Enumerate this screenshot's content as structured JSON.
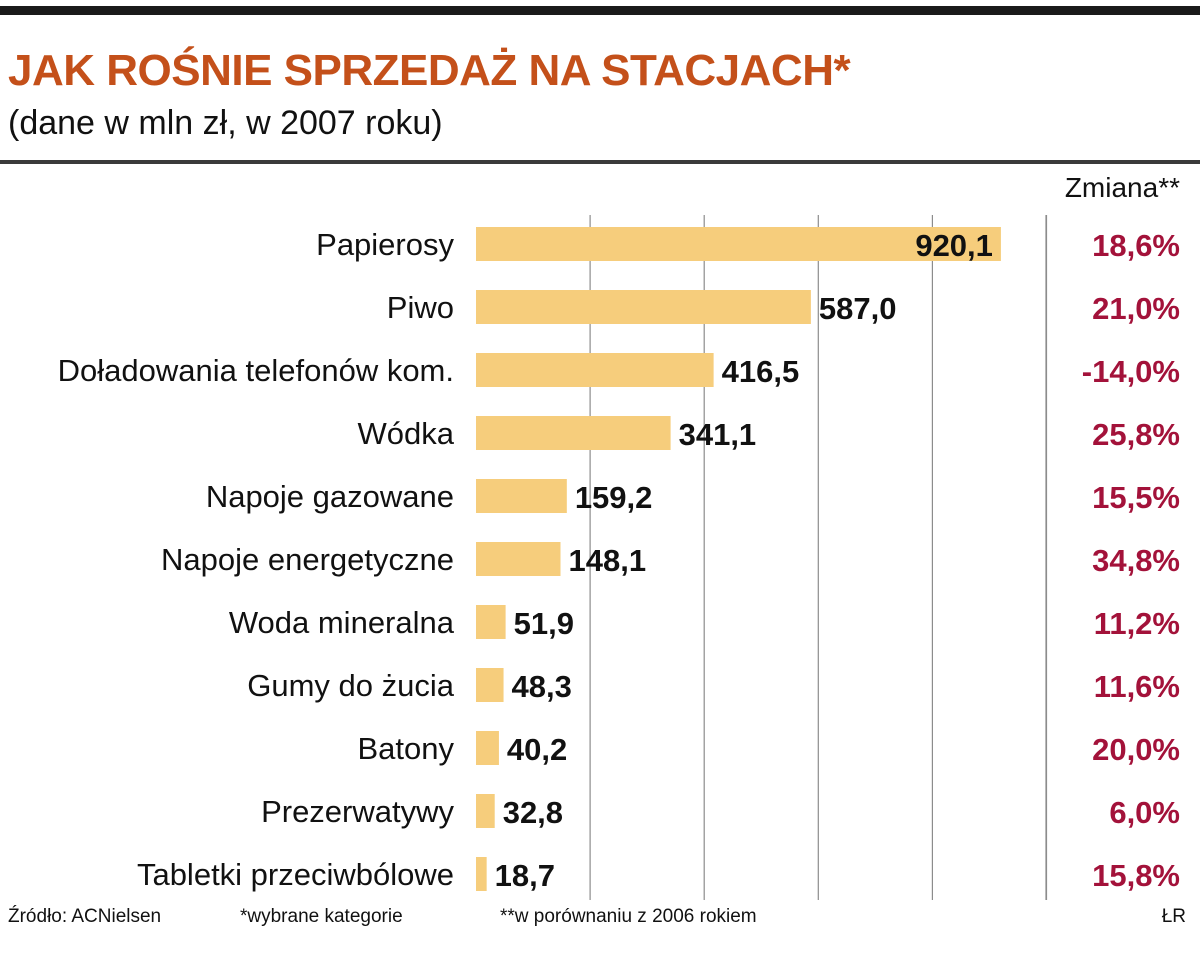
{
  "header": {
    "title": "JAK ROŚNIE SPRZEDAŻ NA STACJACH*",
    "subtitle": "(dane w mln zł, w 2007 roku)"
  },
  "change_column_header": "Zmiana**",
  "colors": {
    "bar": "#f6cd7c",
    "change_text": "#a3123a",
    "title": "#c4501a",
    "grid": "#8c8c8c"
  },
  "chart_data": {
    "type": "bar",
    "orientation": "horizontal",
    "title": "JAK ROŚNIE SPRZEDAŻ NA STACJACH*",
    "subtitle": "(dane w mln zł, w 2007 roku)",
    "categories": [
      "Papierosy",
      "Piwo",
      "Doładowania telefonów kom.",
      "Wódka",
      "Napoje gazowane",
      "Napoje energetyczne",
      "Woda mineralna",
      "Gumy do żucia",
      "Batony",
      "Prezerwatywy",
      "Tabletki przeciwbólowe"
    ],
    "values": [
      920.1,
      587.0,
      416.5,
      341.1,
      159.2,
      148.1,
      51.9,
      48.3,
      40.2,
      32.8,
      18.7
    ],
    "value_labels": [
      "920,1",
      "587,0",
      "416,5",
      "341,1",
      "159,2",
      "148,1",
      "51,9",
      "48,3",
      "40,2",
      "32,8",
      "18,7"
    ],
    "change_labels": [
      "18,6%",
      "21,0%",
      "-14,0%",
      "25,8%",
      "15,5%",
      "34,8%",
      "11,2%",
      "11,6%",
      "20,0%",
      "6,0%",
      "15,8%"
    ],
    "change_values": [
      18.6,
      21.0,
      -14.0,
      25.8,
      15.5,
      34.8,
      11.2,
      11.6,
      20.0,
      6.0,
      15.8
    ],
    "xlim": [
      0,
      1000
    ],
    "grid": true,
    "legend": "none"
  },
  "footer": {
    "source": "Źródło: ACNielsen",
    "note1": "*wybrane kategorie",
    "note2": "**w porównaniu z 2006 rokiem",
    "author": "ŁR"
  }
}
